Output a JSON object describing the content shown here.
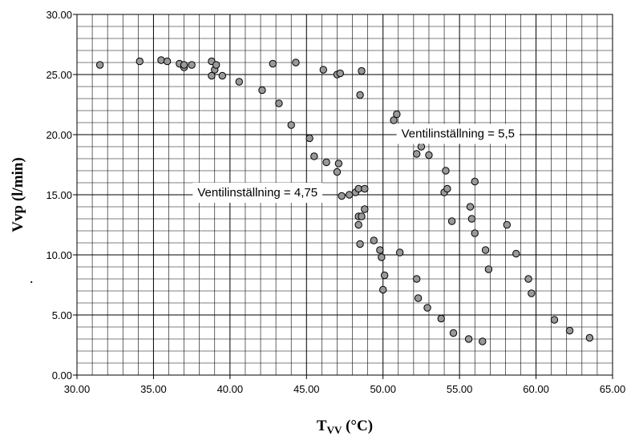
{
  "chart_data": {
    "type": "scatter",
    "title": "",
    "xlabel_main": "T",
    "xlabel_sub": "VV",
    "xlabel_unit": " (°C)",
    "ylabel": "Vvp (l/min)",
    "xlim": [
      30,
      65
    ],
    "ylim": [
      0,
      30
    ],
    "x_major_ticks": [
      "30.00",
      "35.00",
      "40.00",
      "45.00",
      "50.00",
      "55.00",
      "60.00",
      "65.00"
    ],
    "y_major_ticks": [
      "0.00",
      "5.00",
      "10.00",
      "15.00",
      "20.00",
      "25.00",
      "30.00"
    ],
    "x_major_step": 5,
    "y_major_step": 5,
    "x_minor_step": 1,
    "y_minor_step": 1,
    "grid": true,
    "legend": "none",
    "marker_color": "#999999",
    "marker_edge_color": "#000000",
    "annotations": [
      "Ventilinställning = 5,5",
      "Ventilinställning = 4,75"
    ],
    "stray_mark": ".",
    "series": [
      {
        "points": [
          [
            31.5,
            25.8
          ],
          [
            34.1,
            26.1
          ],
          [
            35.5,
            26.2
          ],
          [
            35.9,
            26.1
          ],
          [
            36.7,
            25.9
          ],
          [
            37.0,
            25.6
          ],
          [
            37.0,
            25.8
          ],
          [
            37.5,
            25.8
          ],
          [
            38.8,
            26.1
          ],
          [
            38.8,
            24.9
          ],
          [
            39.0,
            25.4
          ],
          [
            39.1,
            25.8
          ],
          [
            39.5,
            24.9
          ],
          [
            40.6,
            24.4
          ],
          [
            42.1,
            23.7
          ],
          [
            42.8,
            25.9
          ],
          [
            43.2,
            22.6
          ],
          [
            44.0,
            20.8
          ],
          [
            44.3,
            26.0
          ],
          [
            45.2,
            19.7
          ],
          [
            45.5,
            18.2
          ],
          [
            46.1,
            25.4
          ],
          [
            46.3,
            17.7
          ],
          [
            47.0,
            16.9
          ],
          [
            47.1,
            17.6
          ],
          [
            47.0,
            25.0
          ],
          [
            47.2,
            25.1
          ],
          [
            47.3,
            14.9
          ],
          [
            47.8,
            15.0
          ],
          [
            48.2,
            15.2
          ],
          [
            48.4,
            15.5
          ],
          [
            48.4,
            13.2
          ],
          [
            48.4,
            12.5
          ],
          [
            48.5,
            23.3
          ],
          [
            48.5,
            10.9
          ],
          [
            48.6,
            25.3
          ],
          [
            48.6,
            13.2
          ],
          [
            48.8,
            15.5
          ],
          [
            48.8,
            13.8
          ],
          [
            49.4,
            11.2
          ],
          [
            49.8,
            10.4
          ],
          [
            49.9,
            9.8
          ],
          [
            50.0,
            7.1
          ],
          [
            50.1,
            8.3
          ],
          [
            50.7,
            21.2
          ],
          [
            50.9,
            21.7
          ],
          [
            51.1,
            10.2
          ],
          [
            52.2,
            18.4
          ],
          [
            52.2,
            8.0
          ],
          [
            52.3,
            6.4
          ],
          [
            52.5,
            19.0
          ],
          [
            52.9,
            5.6
          ],
          [
            53.0,
            18.3
          ],
          [
            53.8,
            4.7
          ],
          [
            54.0,
            15.2
          ],
          [
            54.1,
            17.0
          ],
          [
            54.2,
            15.5
          ],
          [
            54.5,
            12.8
          ],
          [
            54.6,
            3.5
          ],
          [
            55.6,
            3.0
          ],
          [
            55.7,
            14.0
          ],
          [
            55.8,
            13.0
          ],
          [
            56.0,
            16.1
          ],
          [
            56.0,
            11.8
          ],
          [
            56.5,
            2.8
          ],
          [
            56.7,
            10.4
          ],
          [
            56.9,
            8.8
          ],
          [
            58.1,
            12.5
          ],
          [
            58.7,
            10.1
          ],
          [
            59.5,
            8.0
          ],
          [
            59.7,
            6.8
          ],
          [
            61.2,
            4.6
          ],
          [
            62.2,
            3.7
          ],
          [
            63.5,
            3.1
          ]
        ]
      }
    ]
  }
}
